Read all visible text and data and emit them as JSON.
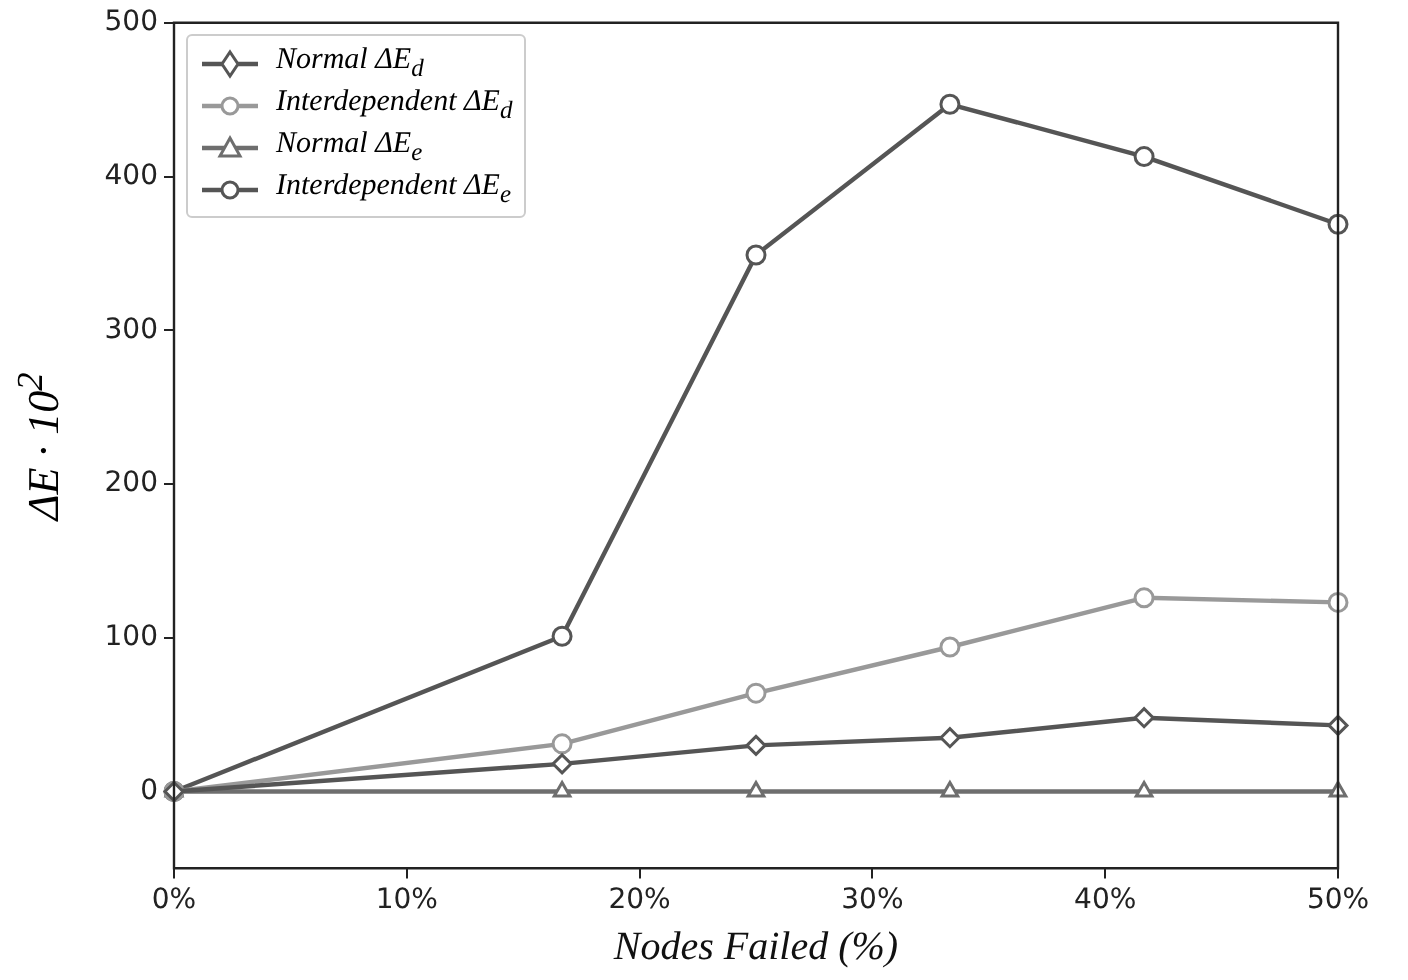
{
  "chart_data": {
    "type": "line",
    "xlabel": "Nodes Failed (%)",
    "ylabel": "ΔE · 10$^{2}$",
    "x": [
      0,
      16.67,
      25,
      33.33,
      41.67,
      50
    ],
    "series": [
      {
        "name": "Normal ΔE$_{d}$",
        "color": "#555555",
        "marker": "diamond",
        "values": [
          0,
          18,
          30,
          35,
          48,
          43
        ]
      },
      {
        "name": "Interdependent ΔE$_{d}$",
        "color": "#999999",
        "marker": "circle",
        "values": [
          0,
          31,
          64,
          94,
          126,
          123
        ]
      },
      {
        "name": "Normal ΔE$_{e}$",
        "color": "#6e6e6e",
        "marker": "triangle",
        "values": [
          0,
          0,
          0,
          0,
          0,
          0
        ]
      },
      {
        "name": "Interdependent ΔE$_{e}$",
        "color": "#555555",
        "marker": "circle",
        "values": [
          0,
          101,
          349,
          447,
          413,
          369
        ]
      }
    ],
    "xlim": [
      0,
      50
    ],
    "xticks": [
      {
        "value": 0,
        "label": "0%"
      },
      {
        "value": 10,
        "label": "10%"
      },
      {
        "value": 20,
        "label": "20%"
      },
      {
        "value": 30,
        "label": "30%"
      },
      {
        "value": 40,
        "label": "40%"
      },
      {
        "value": 50,
        "label": "50%"
      }
    ],
    "ylim": [
      -50,
      500
    ],
    "yticks": [
      0,
      100,
      200,
      300,
      400,
      500
    ],
    "grid": false,
    "legend": "top left",
    "line_style": "solid"
  }
}
